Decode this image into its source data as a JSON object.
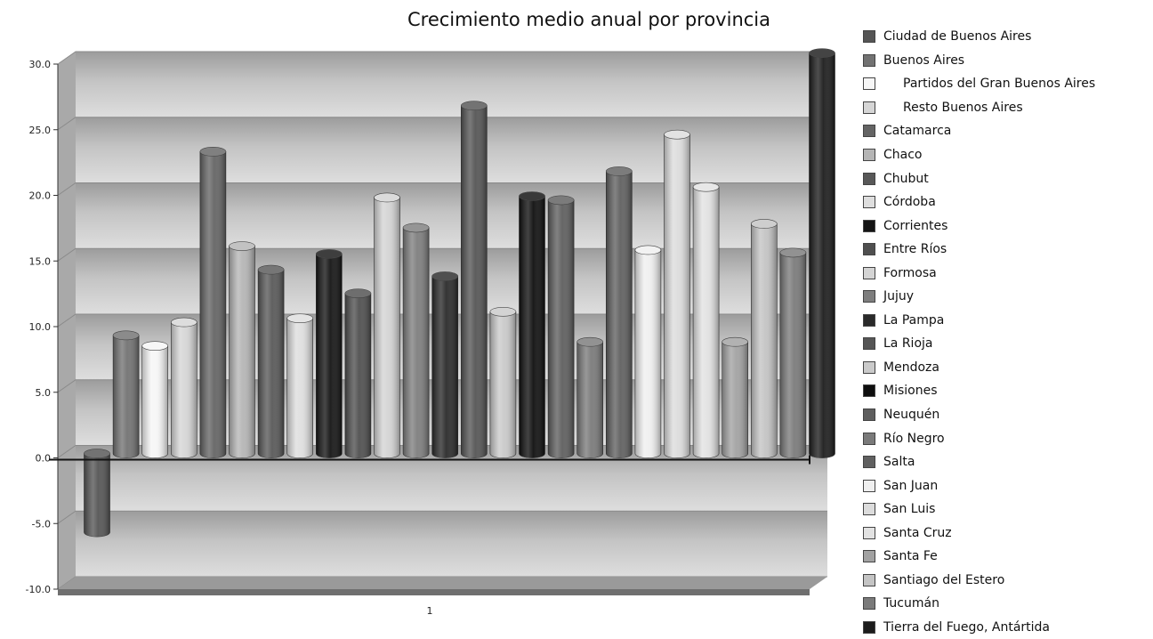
{
  "chart_data": {
    "type": "bar",
    "title": "Crecimiento medio anual por provincia",
    "categories": [
      "1"
    ],
    "xlabel": "",
    "ylabel": "",
    "ylim": [
      -10,
      30
    ],
    "y_ticks": [
      "30.0",
      "25.0",
      "20.0",
      "15.0",
      "10.0",
      "5.0",
      "0.0",
      "-5.0",
      "-10.0"
    ],
    "grid": true,
    "legend_position": "right",
    "series": [
      {
        "name": "Ciudad de Buenos Aires",
        "values": [
          -6.0
        ],
        "color": "#555555",
        "indent": false
      },
      {
        "name": "Buenos Aires",
        "values": [
          9.0
        ],
        "color": "#727272",
        "indent": false
      },
      {
        "name": "Partidos del Gran Buenos Aires",
        "values": [
          8.2
        ],
        "color": "#f6f6f6",
        "indent": true
      },
      {
        "name": "Resto Buenos Aires",
        "values": [
          10.0
        ],
        "color": "#d6d6d6",
        "indent": true
      },
      {
        "name": "Catamarca",
        "values": [
          23.0
        ],
        "color": "#646464",
        "indent": false
      },
      {
        "name": "Chaco",
        "values": [
          15.8
        ],
        "color": "#b5b5b5",
        "indent": false
      },
      {
        "name": "Chubut",
        "values": [
          14.0
        ],
        "color": "#585858",
        "indent": false
      },
      {
        "name": "Córdoba",
        "values": [
          10.3
        ],
        "color": "#dedede",
        "indent": false
      },
      {
        "name": "Corrientes",
        "values": [
          15.2
        ],
        "color": "#141414",
        "indent": false
      },
      {
        "name": "Entre Ríos",
        "values": [
          12.2
        ],
        "color": "#4f4f4f",
        "indent": false
      },
      {
        "name": "Formosa",
        "values": [
          19.5
        ],
        "color": "#d4d4d4",
        "indent": false
      },
      {
        "name": "Jujuy",
        "values": [
          17.2
        ],
        "color": "#7e7e7e",
        "indent": false
      },
      {
        "name": "La Pampa",
        "values": [
          13.5
        ],
        "color": "#2a2a2a",
        "indent": false
      },
      {
        "name": "La Rioja",
        "values": [
          26.5
        ],
        "color": "#555555",
        "indent": false
      },
      {
        "name": "Mendoza",
        "values": [
          10.8
        ],
        "color": "#cacaca",
        "indent": false
      },
      {
        "name": "Misiones",
        "values": [
          19.6
        ],
        "color": "#0e0e0e",
        "indent": false
      },
      {
        "name": "Neuquén",
        "values": [
          19.3
        ],
        "color": "#5e5e5e",
        "indent": false
      },
      {
        "name": "Río Negro",
        "values": [
          8.5
        ],
        "color": "#7a7a7a",
        "indent": false
      },
      {
        "name": "Salta",
        "values": [
          21.5
        ],
        "color": "#606060",
        "indent": false
      },
      {
        "name": "San Juan",
        "values": [
          15.5
        ],
        "color": "#efefef",
        "indent": false
      },
      {
        "name": "San Luis",
        "values": [
          24.3
        ],
        "color": "#dcdcdc",
        "indent": false
      },
      {
        "name": "Santa Cruz",
        "values": [
          20.3
        ],
        "color": "#e2e2e2",
        "indent": false
      },
      {
        "name": "Santa Fe",
        "values": [
          8.5
        ],
        "color": "#a2a2a2",
        "indent": false
      },
      {
        "name": "Santiago del Estero",
        "values": [
          17.5
        ],
        "color": "#c4c4c4",
        "indent": false
      },
      {
        "name": "Tucumán",
        "values": [
          15.3
        ],
        "color": "#7a7a7a",
        "indent": false
      },
      {
        "name": "Tierra del Fuego, Antártida",
        "values": [
          30.5
        ],
        "color": "#1c1c1c",
        "indent": false
      }
    ]
  }
}
